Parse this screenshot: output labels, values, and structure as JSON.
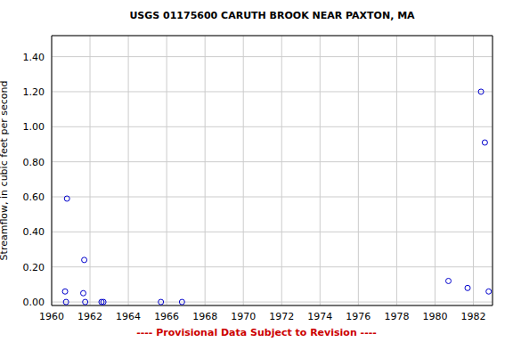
{
  "chart_data": {
    "type": "scatter",
    "title": "USGS 01175600 CARUTH BROOK NEAR PAXTON, MA",
    "y_label": "Streamflow, in cubic feet per second",
    "annotation": "---- Provisional Data Subject to Revision ----",
    "x": [
      1960.7,
      1960.75,
      1960.8,
      1961.65,
      1961.7,
      1961.75,
      1962.6,
      1962.7,
      1965.7,
      1966.8,
      1980.7,
      1981.7,
      1982.4,
      1982.6,
      1982.8
    ],
    "values": [
      0.06,
      0.0,
      0.59,
      0.05,
      0.24,
      0.0,
      0.0,
      0.0,
      0.0,
      0.0,
      0.12,
      0.08,
      1.2,
      0.91,
      0.06
    ],
    "color": "#0000cc",
    "marker": "o",
    "grid": true,
    "xlim": [
      1960,
      1983
    ],
    "xticks": [
      1960,
      1962,
      1964,
      1966,
      1968,
      1970,
      1972,
      1974,
      1976,
      1978,
      1980,
      1982
    ],
    "ylim": [
      -0.02,
      1.52
    ],
    "yticks": [
      {
        "value": 0,
        "label": "0.00"
      },
      {
        "value": 0.2,
        "label": "0.20"
      },
      {
        "value": 0.4,
        "label": "0.40"
      },
      {
        "value": 0.6,
        "label": "0.60"
      },
      {
        "value": 0.8,
        "label": "0.80"
      },
      {
        "value": 1.0,
        "label": "1.00"
      },
      {
        "value": 1.2,
        "label": "1.20"
      },
      {
        "value": 1.4,
        "label": "1.40"
      }
    ]
  }
}
